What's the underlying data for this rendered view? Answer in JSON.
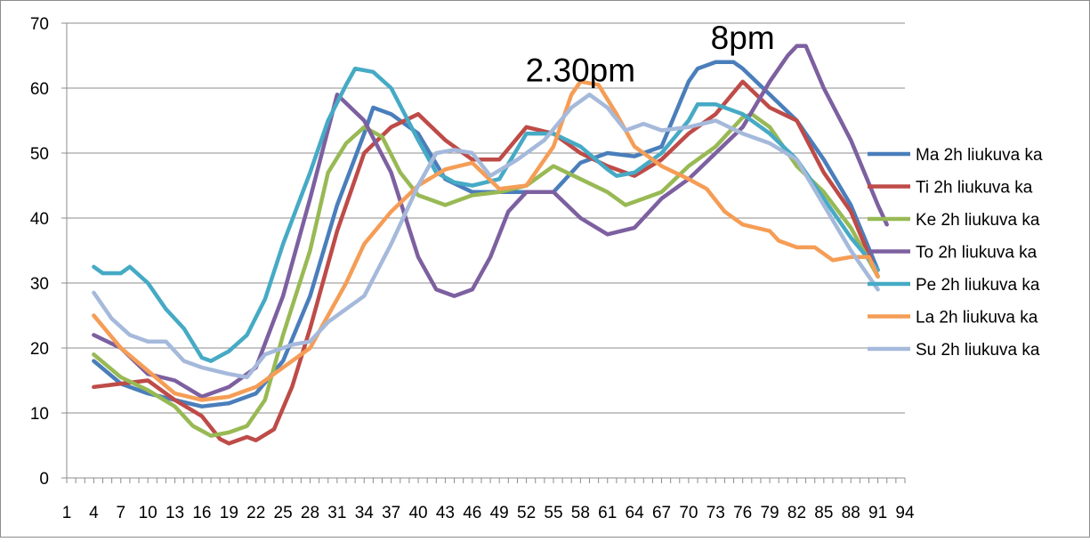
{
  "chart_data": {
    "type": "line",
    "title": "",
    "xlabel": "",
    "ylabel": "",
    "ylim": [
      0,
      70
    ],
    "xlim": [
      1,
      94
    ],
    "yticks": [
      0,
      10,
      20,
      30,
      40,
      50,
      60,
      70
    ],
    "xticks": [
      1,
      4,
      7,
      10,
      13,
      16,
      19,
      22,
      25,
      28,
      31,
      34,
      37,
      40,
      43,
      46,
      49,
      52,
      55,
      58,
      61,
      64,
      67,
      70,
      73,
      76,
      79,
      82,
      85,
      88,
      91,
      94
    ],
    "grid": "horizontal",
    "legend_position": "right",
    "annotations": [
      {
        "text": "2.30pm",
        "x": 58,
        "y": 61
      },
      {
        "text": "8pm",
        "x": 76,
        "y": 66
      }
    ],
    "series": [
      {
        "name": "Ma 2h liukuva ka",
        "color": "#4a7ebb",
        "points": [
          [
            4,
            18
          ],
          [
            7,
            14.5
          ],
          [
            10,
            13
          ],
          [
            13,
            12
          ],
          [
            16,
            11
          ],
          [
            19,
            11.5
          ],
          [
            22,
            13
          ],
          [
            25,
            18
          ],
          [
            28,
            28
          ],
          [
            31,
            42
          ],
          [
            34,
            53
          ],
          [
            35,
            57
          ],
          [
            37,
            56
          ],
          [
            40,
            53
          ],
          [
            43,
            46
          ],
          [
            46,
            44
          ],
          [
            49,
            44
          ],
          [
            52,
            44
          ],
          [
            55,
            44
          ],
          [
            58,
            48.5
          ],
          [
            61,
            50
          ],
          [
            64,
            49.5
          ],
          [
            67,
            51
          ],
          [
            70,
            61
          ],
          [
            71,
            63
          ],
          [
            73,
            64
          ],
          [
            75,
            64
          ],
          [
            76,
            63
          ],
          [
            79,
            59
          ],
          [
            82,
            55
          ],
          [
            85,
            49
          ],
          [
            88,
            42
          ],
          [
            91,
            32
          ]
        ]
      },
      {
        "name": "Ti 2h liukuva ka",
        "color": "#be4b48",
        "points": [
          [
            4,
            14
          ],
          [
            7,
            14.5
          ],
          [
            10,
            15
          ],
          [
            13,
            12
          ],
          [
            16,
            9.5
          ],
          [
            18,
            6
          ],
          [
            19,
            5.3
          ],
          [
            21,
            6.3
          ],
          [
            22,
            5.8
          ],
          [
            24,
            7.5
          ],
          [
            26,
            14
          ],
          [
            28,
            23
          ],
          [
            31,
            38
          ],
          [
            34,
            50
          ],
          [
            37,
            54
          ],
          [
            40,
            56
          ],
          [
            43,
            52
          ],
          [
            46,
            49
          ],
          [
            49,
            49
          ],
          [
            52,
            54
          ],
          [
            55,
            53
          ],
          [
            58,
            50
          ],
          [
            61,
            48
          ],
          [
            64,
            46.5
          ],
          [
            67,
            49
          ],
          [
            70,
            53
          ],
          [
            73,
            56
          ],
          [
            76,
            61
          ],
          [
            79,
            57
          ],
          [
            82,
            55
          ],
          [
            85,
            47
          ],
          [
            88,
            41
          ],
          [
            91,
            31
          ]
        ]
      },
      {
        "name": "Ke 2h liukuva ka",
        "color": "#98b954",
        "points": [
          [
            4,
            19
          ],
          [
            7,
            15.5
          ],
          [
            10,
            13.5
          ],
          [
            13,
            11
          ],
          [
            15,
            8
          ],
          [
            17,
            6.5
          ],
          [
            19,
            7
          ],
          [
            21,
            8
          ],
          [
            23,
            12
          ],
          [
            25,
            22
          ],
          [
            28,
            35
          ],
          [
            30,
            47
          ],
          [
            32,
            51.5
          ],
          [
            34,
            54
          ],
          [
            36,
            52.5
          ],
          [
            38,
            47
          ],
          [
            40,
            43.5
          ],
          [
            43,
            42
          ],
          [
            46,
            43.5
          ],
          [
            49,
            44
          ],
          [
            52,
            45
          ],
          [
            55,
            48
          ],
          [
            58,
            46
          ],
          [
            61,
            44
          ],
          [
            63,
            42
          ],
          [
            65,
            43
          ],
          [
            67,
            44
          ],
          [
            70,
            48
          ],
          [
            73,
            51
          ],
          [
            76,
            55.5
          ],
          [
            77,
            56
          ],
          [
            79,
            54
          ],
          [
            82,
            48
          ],
          [
            85,
            44
          ],
          [
            88,
            38.5
          ],
          [
            91,
            31
          ]
        ]
      },
      {
        "name": "To 2h liukuva ka",
        "color": "#7d60a0",
        "points": [
          [
            4,
            22
          ],
          [
            7,
            20
          ],
          [
            10,
            16
          ],
          [
            13,
            15
          ],
          [
            16,
            12.5
          ],
          [
            19,
            14
          ],
          [
            22,
            17
          ],
          [
            25,
            28
          ],
          [
            28,
            43
          ],
          [
            31,
            59
          ],
          [
            34,
            55
          ],
          [
            37,
            47
          ],
          [
            40,
            34
          ],
          [
            42,
            29
          ],
          [
            44,
            28
          ],
          [
            46,
            29
          ],
          [
            48,
            34
          ],
          [
            50,
            41
          ],
          [
            52,
            44
          ],
          [
            55,
            44
          ],
          [
            58,
            40
          ],
          [
            61,
            37.5
          ],
          [
            64,
            38.5
          ],
          [
            67,
            43
          ],
          [
            70,
            46
          ],
          [
            73,
            50
          ],
          [
            76,
            54
          ],
          [
            79,
            61
          ],
          [
            81,
            65
          ],
          [
            82,
            66.5
          ],
          [
            83,
            66.5
          ],
          [
            85,
            60
          ],
          [
            88,
            52
          ],
          [
            91,
            42
          ],
          [
            92,
            39
          ]
        ]
      },
      {
        "name": "Pe 2h liukuva ka",
        "color": "#46aac5",
        "points": [
          [
            4,
            32.5
          ],
          [
            5,
            31.5
          ],
          [
            7,
            31.5
          ],
          [
            8,
            32.5
          ],
          [
            10,
            30
          ],
          [
            12,
            26
          ],
          [
            14,
            23
          ],
          [
            16,
            18.5
          ],
          [
            17,
            18
          ],
          [
            19,
            19.5
          ],
          [
            21,
            22
          ],
          [
            23,
            27.5
          ],
          [
            25,
            36
          ],
          [
            28,
            47
          ],
          [
            30,
            55
          ],
          [
            32,
            60.5
          ],
          [
            33,
            63
          ],
          [
            35,
            62.5
          ],
          [
            37,
            60
          ],
          [
            40,
            52
          ],
          [
            42,
            47
          ],
          [
            44,
            45.5
          ],
          [
            46,
            45
          ],
          [
            49,
            46
          ],
          [
            52,
            53
          ],
          [
            55,
            53
          ],
          [
            58,
            51
          ],
          [
            61,
            47.5
          ],
          [
            62,
            46.5
          ],
          [
            64,
            47
          ],
          [
            67,
            50
          ],
          [
            70,
            55
          ],
          [
            71,
            57.5
          ],
          [
            73,
            57.5
          ],
          [
            76,
            56
          ],
          [
            79,
            53
          ],
          [
            82,
            49
          ],
          [
            85,
            43
          ],
          [
            88,
            37
          ],
          [
            91,
            32
          ]
        ]
      },
      {
        "name": "La 2h liukuva ka",
        "color": "#f59d56",
        "points": [
          [
            4,
            25
          ],
          [
            7,
            20
          ],
          [
            10,
            16.5
          ],
          [
            13,
            13
          ],
          [
            16,
            12
          ],
          [
            19,
            12.5
          ],
          [
            22,
            14
          ],
          [
            25,
            17
          ],
          [
            28,
            20
          ],
          [
            30,
            25
          ],
          [
            32,
            30
          ],
          [
            34,
            36
          ],
          [
            37,
            41
          ],
          [
            40,
            45
          ],
          [
            43,
            47.5
          ],
          [
            46,
            48.5
          ],
          [
            49,
            44.5
          ],
          [
            52,
            45
          ],
          [
            55,
            51
          ],
          [
            57,
            59
          ],
          [
            58,
            61
          ],
          [
            60,
            60.5
          ],
          [
            62,
            56
          ],
          [
            64,
            51
          ],
          [
            67,
            48
          ],
          [
            70,
            46
          ],
          [
            72,
            44.5
          ],
          [
            74,
            41
          ],
          [
            76,
            39
          ],
          [
            79,
            38
          ],
          [
            80,
            36.5
          ],
          [
            82,
            35.5
          ],
          [
            84,
            35.5
          ],
          [
            86,
            33.5
          ],
          [
            88,
            34
          ],
          [
            90,
            34
          ],
          [
            91,
            31
          ]
        ]
      },
      {
        "name": "Su 2h liukuva ka",
        "color": "#a5b9db",
        "points": [
          [
            4,
            28.5
          ],
          [
            6,
            24.5
          ],
          [
            8,
            22
          ],
          [
            10,
            21
          ],
          [
            12,
            21
          ],
          [
            14,
            18
          ],
          [
            16,
            17
          ],
          [
            19,
            16
          ],
          [
            21,
            15.5
          ],
          [
            23,
            19
          ],
          [
            26,
            20.5
          ],
          [
            28,
            21
          ],
          [
            30,
            24
          ],
          [
            32,
            26
          ],
          [
            34,
            28
          ],
          [
            37,
            36
          ],
          [
            40,
            45
          ],
          [
            42,
            50
          ],
          [
            44,
            50.5
          ],
          [
            46,
            50
          ],
          [
            48,
            46.5
          ],
          [
            51,
            49
          ],
          [
            54,
            52
          ],
          [
            57,
            57
          ],
          [
            59,
            59
          ],
          [
            61,
            57
          ],
          [
            63,
            53.5
          ],
          [
            65,
            54.5
          ],
          [
            67,
            53.5
          ],
          [
            70,
            54
          ],
          [
            73,
            55
          ],
          [
            76,
            53
          ],
          [
            79,
            51.5
          ],
          [
            82,
            49
          ],
          [
            85,
            42
          ],
          [
            88,
            35
          ],
          [
            91,
            29
          ]
        ]
      }
    ]
  }
}
